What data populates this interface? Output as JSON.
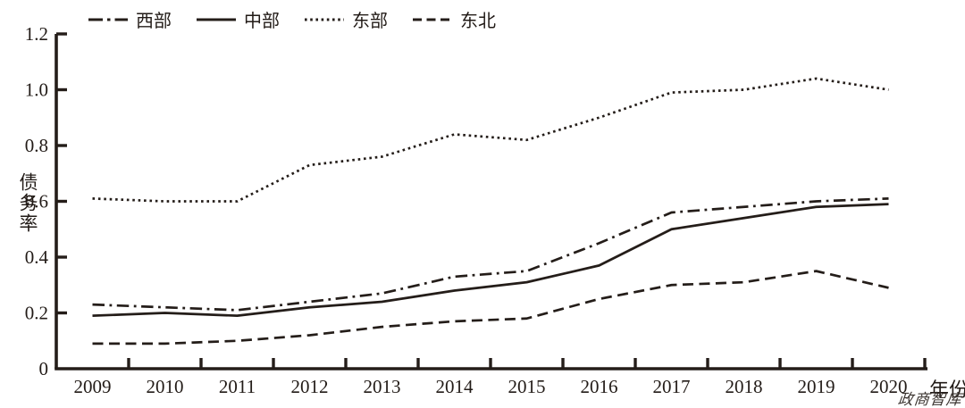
{
  "chart_data": {
    "type": "line",
    "title": "",
    "xlabel": "年份",
    "ylabel": "债务率",
    "categories": [
      "2009",
      "2010",
      "2011",
      "2012",
      "2013",
      "2014",
      "2015",
      "2016",
      "2017",
      "2018",
      "2019",
      "2020"
    ],
    "y_ticks": [
      "0",
      "0.2",
      "0.4",
      "0.6",
      "0.8",
      "1.0",
      "1.2"
    ],
    "ylim": [
      0,
      1.2
    ],
    "grid": false,
    "legend_position": "top",
    "series": [
      {
        "id": "west",
        "name": "西部",
        "line_style": "dashdot",
        "values": [
          0.23,
          0.22,
          0.21,
          0.24,
          0.27,
          0.33,
          0.35,
          0.45,
          0.56,
          0.58,
          0.6,
          0.61
        ]
      },
      {
        "id": "central",
        "name": "中部",
        "line_style": "solid",
        "values": [
          0.19,
          0.2,
          0.19,
          0.22,
          0.24,
          0.28,
          0.31,
          0.37,
          0.5,
          0.54,
          0.58,
          0.59
        ]
      },
      {
        "id": "east",
        "name": "东部",
        "line_style": "dotted",
        "values": [
          0.61,
          0.6,
          0.6,
          0.73,
          0.76,
          0.84,
          0.82,
          0.9,
          0.99,
          1.0,
          1.04,
          1.0
        ]
      },
      {
        "id": "northeast",
        "name": "东北",
        "line_style": "dashed",
        "values": [
          0.09,
          0.09,
          0.1,
          0.12,
          0.15,
          0.17,
          0.18,
          0.25,
          0.3,
          0.31,
          0.35,
          0.29
        ]
      }
    ]
  },
  "colors": {
    "line": "#241d19",
    "text": "#221b17",
    "background": "#ffffff",
    "watermark": "#3b3430"
  },
  "watermark": {
    "text": "政商智库"
  }
}
